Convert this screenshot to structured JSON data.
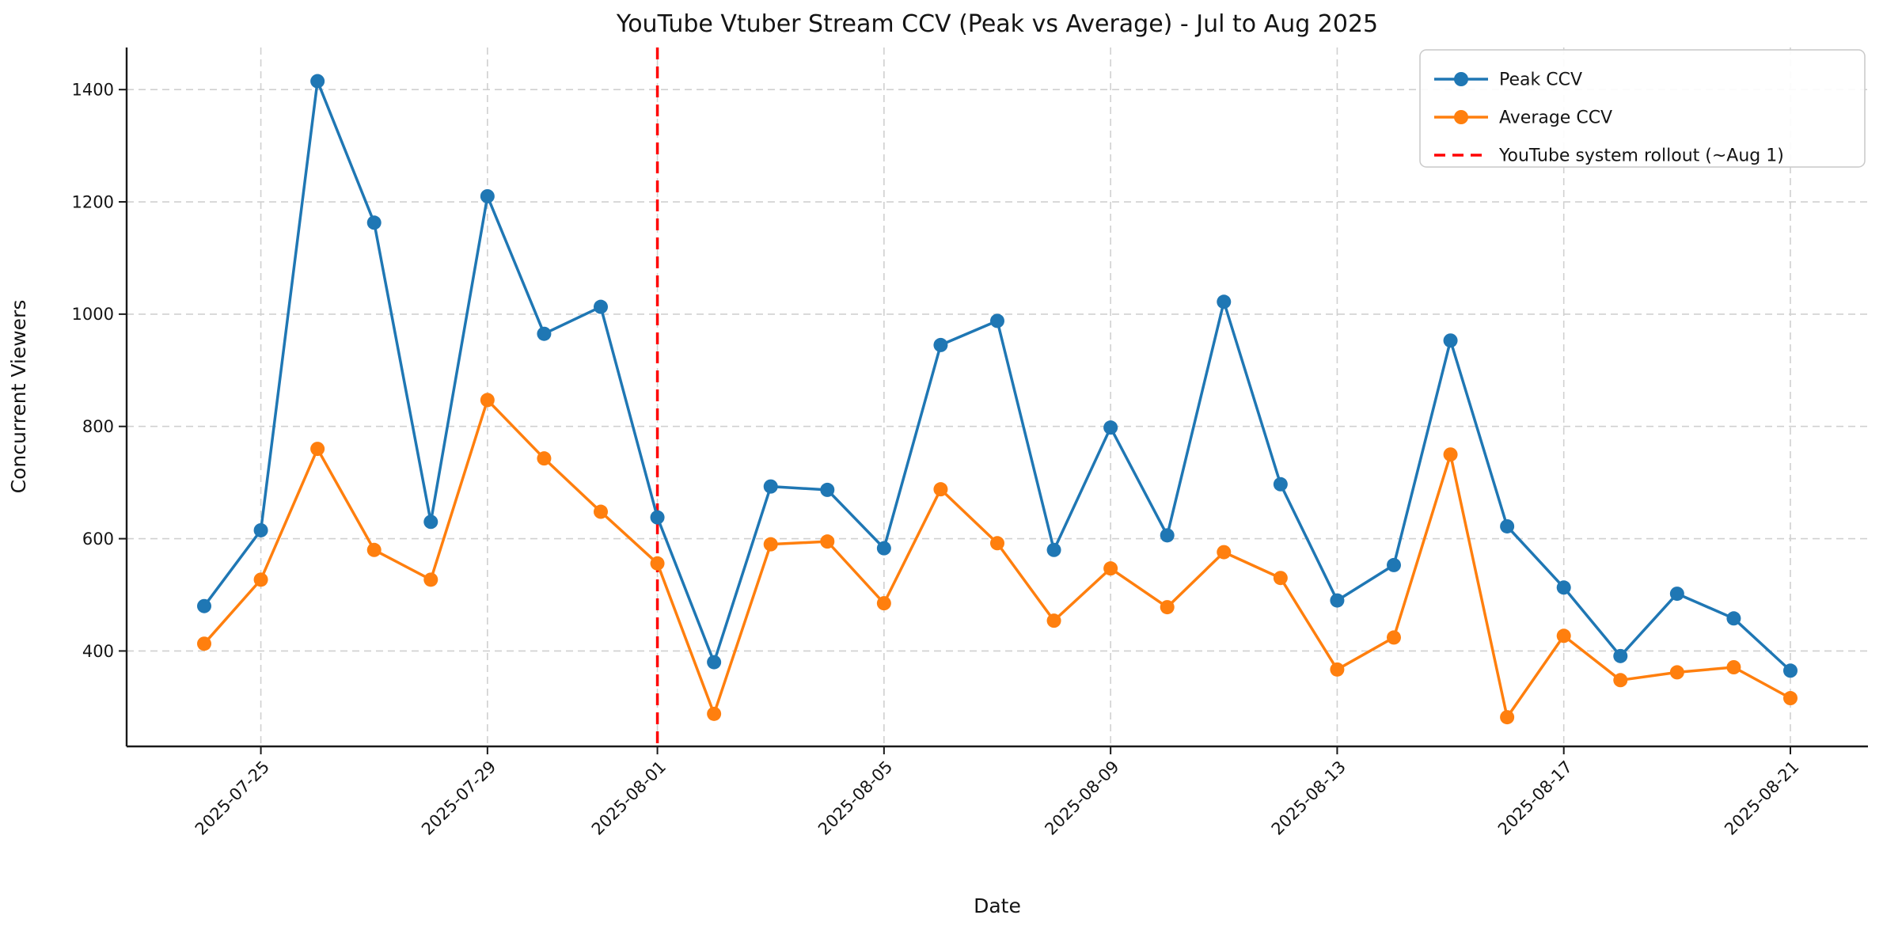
{
  "chart_data": {
    "type": "line",
    "title": "YouTube Vtuber Stream CCV (Peak vs Average) - Jul to Aug 2025",
    "xlabel": "Date",
    "ylabel": "Concurrent Viewers",
    "x": [
      "2025-07-24",
      "2025-07-25",
      "2025-07-26",
      "2025-07-27",
      "2025-07-28",
      "2025-07-29",
      "2025-07-30",
      "2025-07-31",
      "2025-08-01",
      "2025-08-02",
      "2025-08-03",
      "2025-08-04",
      "2025-08-05",
      "2025-08-06",
      "2025-08-07",
      "2025-08-08",
      "2025-08-09",
      "2025-08-10",
      "2025-08-11",
      "2025-08-12",
      "2025-08-13",
      "2025-08-14",
      "2025-08-15",
      "2025-08-16",
      "2025-08-17",
      "2025-08-18",
      "2025-08-19",
      "2025-08-20",
      "2025-08-21"
    ],
    "series": [
      {
        "name": "Peak CCV",
        "color": "#1f77b4",
        "values": [
          480,
          615,
          1415,
          1163,
          630,
          1210,
          965,
          1013,
          638,
          380,
          693,
          687,
          583,
          945,
          988,
          580,
          798,
          606,
          1022,
          697,
          490,
          553,
          953,
          622,
          513,
          391,
          502,
          458,
          365
        ]
      },
      {
        "name": "Average CCV",
        "color": "#ff7f0e",
        "values": [
          413,
          527,
          760,
          580,
          527,
          847,
          743,
          648,
          556,
          288,
          590,
          595,
          485,
          688,
          592,
          454,
          547,
          478,
          576,
          530,
          367,
          424,
          750,
          282,
          427,
          348,
          362,
          371,
          316
        ]
      }
    ],
    "vline": {
      "label": "YouTube system rollout (~Aug 1)",
      "date": "2025-08-01",
      "x_index": 8,
      "color": "#ff0000",
      "style": "dashed"
    },
    "x_tick_labels": [
      "2025-07-25",
      "2025-07-29",
      "2025-08-01",
      "2025-08-05",
      "2025-08-09",
      "2025-08-13",
      "2025-08-17",
      "2025-08-21"
    ],
    "x_tick_indices": [
      1,
      5,
      8,
      12,
      16,
      20,
      24,
      28
    ],
    "y_ticks": [
      400,
      600,
      800,
      1000,
      1200,
      1400
    ],
    "ylim": [
      230,
      1475
    ],
    "grid": true,
    "grid_color": "#d0d0d0",
    "axis_color": "#1a1a1a",
    "legend_position": "upper right"
  }
}
